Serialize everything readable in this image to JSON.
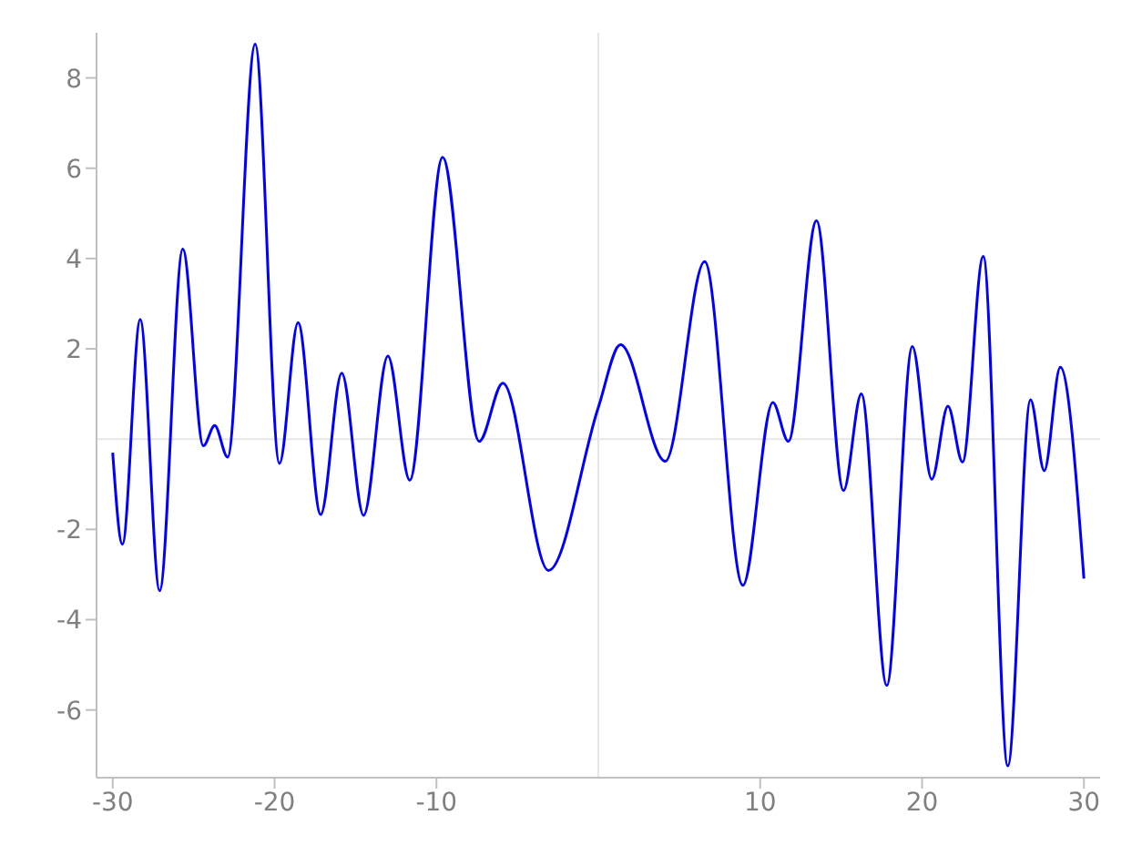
{
  "chart_data": {
    "type": "line",
    "x": [
      -30,
      -29.4,
      -28.3,
      -27.1,
      -25.67,
      -24.4,
      -23.7,
      -22.9,
      -21.2,
      -19.7,
      -18.55,
      -17.15,
      -15.85,
      -14.5,
      -13.0,
      -11.65,
      -9.62,
      -7.36,
      -5.9,
      -3.08,
      0,
      1.37,
      4.14,
      6.57,
      8.93,
      10.78,
      11.74,
      13.48,
      15.15,
      16.25,
      17.82,
      19.4,
      20.6,
      21.6,
      22.5,
      23.78,
      25.3,
      26.7,
      27.55,
      28.54,
      30
    ],
    "series": [
      {
        "color": "#0000ff",
        "values": [
          -0.3,
          -2.33,
          2.65,
          -3.36,
          4.21,
          -0.15,
          0.3,
          -0.4,
          8.75,
          -0.54,
          2.58,
          -1.67,
          1.46,
          -1.69,
          1.84,
          -0.91,
          6.24,
          -0.05,
          1.24,
          -2.91,
          0.7,
          2.09,
          -0.49,
          3.93,
          -3.24,
          0.81,
          -0.05,
          4.84,
          -1.14,
          1.0,
          -5.46,
          2.05,
          -0.89,
          0.73,
          -0.51,
          4.05,
          -7.24,
          0.87,
          -0.7,
          1.59,
          -3.09
        ]
      }
    ],
    "xlim": [
      -31,
      31
    ],
    "ylim": [
      -7.5,
      9
    ],
    "xticks": [
      -30,
      -20,
      -10,
      10,
      20,
      30
    ],
    "yticks": [
      -6,
      -4,
      -2,
      2,
      4,
      6,
      8
    ],
    "grid": false,
    "legend": false,
    "marker": "none",
    "line_style": "solid"
  }
}
